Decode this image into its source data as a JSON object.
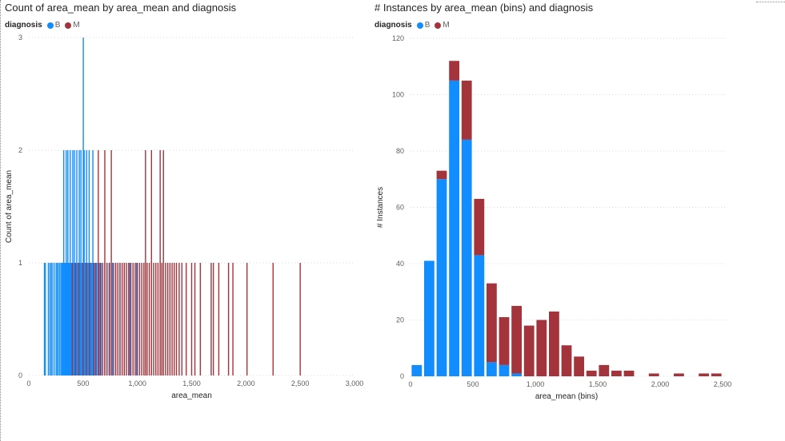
{
  "colors": {
    "B": "#118DFF",
    "M": "#A4343C"
  },
  "chart_data": [
    {
      "type": "bar",
      "title": "Count of area_mean by area_mean and diagnosis",
      "legend": {
        "title": "diagnosis",
        "items": [
          "B",
          "M"
        ],
        "position": "top-left"
      },
      "xlabel": "area_mean",
      "ylabel": "Count of area_mean",
      "xlim": [
        0,
        3000
      ],
      "ylim": [
        0,
        3
      ],
      "x_ticks": [
        "0",
        "500",
        "1,000",
        "1,500",
        "2,000",
        "2,500",
        "3,000"
      ],
      "y_ticks": [
        "0",
        "1",
        "2",
        "3"
      ],
      "grid": true,
      "series": [
        {
          "name": "B",
          "points": [
            [
              144,
              1
            ],
            [
              152,
              1
            ],
            [
              180,
              1
            ],
            [
              195,
              1
            ],
            [
              208,
              1
            ],
            [
              222,
              1
            ],
            [
              240,
              1
            ],
            [
              256,
              1
            ],
            [
              268,
              1
            ],
            [
              282,
              1
            ],
            [
              295,
              1
            ],
            [
              305,
              1
            ],
            [
              315,
              1
            ],
            [
              322,
              2
            ],
            [
              330,
              1
            ],
            [
              338,
              1
            ],
            [
              345,
              2
            ],
            [
              352,
              1
            ],
            [
              360,
              2
            ],
            [
              368,
              1
            ],
            [
              375,
              1
            ],
            [
              382,
              2
            ],
            [
              390,
              1
            ],
            [
              398,
              1
            ],
            [
              405,
              2
            ],
            [
              412,
              1
            ],
            [
              420,
              2
            ],
            [
              428,
              1
            ],
            [
              435,
              1
            ],
            [
              442,
              2
            ],
            [
              450,
              1
            ],
            [
              458,
              1
            ],
            [
              465,
              2
            ],
            [
              472,
              1
            ],
            [
              480,
              2
            ],
            [
              488,
              1
            ],
            [
              495,
              1
            ],
            [
              502,
              3
            ],
            [
              510,
              2
            ],
            [
              518,
              1
            ],
            [
              525,
              1
            ],
            [
              532,
              2
            ],
            [
              540,
              1
            ],
            [
              548,
              1
            ],
            [
              556,
              2
            ],
            [
              564,
              1
            ],
            [
              572,
              1
            ],
            [
              580,
              1
            ],
            [
              590,
              2
            ],
            [
              600,
              1
            ],
            [
              610,
              1
            ],
            [
              622,
              1
            ],
            [
              635,
              1
            ],
            [
              650,
              1
            ],
            [
              665,
              1
            ],
            [
              680,
              1
            ],
            [
              700,
              1
            ],
            [
              720,
              1
            ],
            [
              745,
              1
            ],
            [
              770,
              1
            ],
            [
              800,
              1
            ],
            [
              840,
              1
            ],
            [
              880,
              1
            ],
            [
              930,
              1
            ],
            [
              992,
              1
            ]
          ]
        },
        {
          "name": "M",
          "points": [
            [
              400,
              1
            ],
            [
              430,
              1
            ],
            [
              462,
              1
            ],
            [
              500,
              1
            ],
            [
              530,
              1
            ],
            [
              560,
              1
            ],
            [
              595,
              1
            ],
            [
              618,
              1
            ],
            [
              640,
              2
            ],
            [
              660,
              1
            ],
            [
              680,
              1
            ],
            [
              700,
              2
            ],
            [
              720,
              1
            ],
            [
              740,
              1
            ],
            [
              760,
              2
            ],
            [
              780,
              1
            ],
            [
              800,
              1
            ],
            [
              820,
              1
            ],
            [
              840,
              1
            ],
            [
              860,
              1
            ],
            [
              880,
              1
            ],
            [
              900,
              1
            ],
            [
              920,
              1
            ],
            [
              940,
              1
            ],
            [
              960,
              1
            ],
            [
              980,
              1
            ],
            [
              1000,
              1
            ],
            [
              1020,
              1
            ],
            [
              1040,
              1
            ],
            [
              1060,
              1
            ],
            [
              1075,
              2
            ],
            [
              1090,
              1
            ],
            [
              1110,
              1
            ],
            [
              1130,
              2
            ],
            [
              1150,
              1
            ],
            [
              1170,
              1
            ],
            [
              1190,
              1
            ],
            [
              1210,
              2
            ],
            [
              1225,
              1
            ],
            [
              1240,
              2
            ],
            [
              1260,
              1
            ],
            [
              1280,
              1
            ],
            [
              1300,
              1
            ],
            [
              1320,
              1
            ],
            [
              1340,
              1
            ],
            [
              1360,
              1
            ],
            [
              1385,
              1
            ],
            [
              1410,
              1
            ],
            [
              1450,
              1
            ],
            [
              1500,
              1
            ],
            [
              1530,
              1
            ],
            [
              1580,
              1
            ],
            [
              1680,
              1
            ],
            [
              1700,
              1
            ],
            [
              1750,
              1
            ],
            [
              1840,
              1
            ],
            [
              1880,
              1
            ],
            [
              2010,
              1
            ],
            [
              2250,
              1
            ],
            [
              2500,
              1
            ]
          ]
        }
      ]
    },
    {
      "type": "bar",
      "stacked": true,
      "title": "# Instances by area_mean (bins) and diagnosis",
      "legend": {
        "title": "diagnosis",
        "items": [
          "B",
          "M"
        ],
        "position": "top-left"
      },
      "xlabel": "area_mean (bins)",
      "ylabel": "# Instances",
      "xlim": [
        0,
        2500
      ],
      "ylim": [
        0,
        120
      ],
      "x_ticks": [
        "0",
        "500",
        "1,000",
        "1,500",
        "2,000",
        "2,500"
      ],
      "y_ticks": [
        "0",
        "20",
        "40",
        "60",
        "80",
        "100",
        "120"
      ],
      "grid": true,
      "bin_width": 100,
      "bins": [
        100,
        200,
        300,
        400,
        500,
        600,
        700,
        800,
        900,
        1000,
        1100,
        1200,
        1300,
        1400,
        1500,
        1600,
        1700,
        1800,
        1900,
        2000,
        2100,
        2200,
        2300,
        2400,
        2500
      ],
      "series": [
        {
          "name": "B",
          "values": [
            4,
            41,
            70,
            105,
            84,
            43,
            5,
            4,
            1,
            0,
            0,
            0,
            0,
            0,
            0,
            0,
            0,
            0,
            0,
            0,
            0,
            0,
            0,
            0,
            0
          ]
        },
        {
          "name": "M",
          "values": [
            0,
            0,
            3,
            7,
            21,
            20,
            28,
            17,
            24,
            18,
            20,
            23,
            11,
            7,
            2,
            4,
            2,
            2,
            0,
            1,
            0,
            1,
            0,
            1,
            1
          ]
        }
      ]
    }
  ]
}
